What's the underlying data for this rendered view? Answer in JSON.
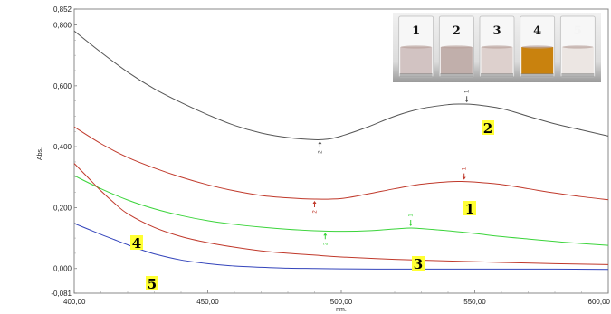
{
  "chart_data": {
    "type": "line",
    "title": "",
    "xlabel": "nm.",
    "ylabel": "Abs.",
    "xlim": [
      400,
      600
    ],
    "ylim": [
      -0.081,
      0.852
    ],
    "x_ticks": [
      "400,00",
      "450,00",
      "500,00",
      "550,00",
      "600,00"
    ],
    "x_tick_values": [
      400,
      450,
      500,
      550,
      600
    ],
    "y_ticks": [
      "0,852",
      "0,800",
      "0,600",
      "0,400",
      "0,200",
      "0,000",
      "-0,081"
    ],
    "y_tick_values": [
      0.852,
      0.8,
      0.6,
      0.4,
      0.2,
      0.0,
      -0.081
    ],
    "grid": false,
    "series": [
      {
        "name": "2",
        "color": "#555555",
        "points": [
          [
            400,
            0.78
          ],
          [
            410,
            0.71
          ],
          [
            420,
            0.645
          ],
          [
            430,
            0.59
          ],
          [
            440,
            0.545
          ],
          [
            450,
            0.505
          ],
          [
            460,
            0.47
          ],
          [
            470,
            0.445
          ],
          [
            480,
            0.43
          ],
          [
            490,
            0.423
          ],
          [
            495,
            0.425
          ],
          [
            500,
            0.435
          ],
          [
            510,
            0.465
          ],
          [
            520,
            0.5
          ],
          [
            530,
            0.525
          ],
          [
            540,
            0.538
          ],
          [
            545,
            0.54
          ],
          [
            550,
            0.538
          ],
          [
            560,
            0.525
          ],
          [
            570,
            0.5
          ],
          [
            580,
            0.475
          ],
          [
            590,
            0.455
          ],
          [
            600,
            0.435
          ]
        ]
      },
      {
        "name": "1",
        "color": "#c0392b",
        "points": [
          [
            400,
            0.465
          ],
          [
            410,
            0.41
          ],
          [
            420,
            0.365
          ],
          [
            430,
            0.33
          ],
          [
            440,
            0.3
          ],
          [
            450,
            0.275
          ],
          [
            460,
            0.255
          ],
          [
            470,
            0.24
          ],
          [
            480,
            0.232
          ],
          [
            490,
            0.228
          ],
          [
            500,
            0.23
          ],
          [
            510,
            0.245
          ],
          [
            520,
            0.262
          ],
          [
            530,
            0.277
          ],
          [
            540,
            0.285
          ],
          [
            545,
            0.286
          ],
          [
            550,
            0.284
          ],
          [
            560,
            0.276
          ],
          [
            570,
            0.262
          ],
          [
            580,
            0.248
          ],
          [
            590,
            0.236
          ],
          [
            600,
            0.226
          ]
        ]
      },
      {
        "name": "",
        "color": "#3bd43b",
        "points": [
          [
            400,
            0.305
          ],
          [
            410,
            0.262
          ],
          [
            420,
            0.225
          ],
          [
            430,
            0.196
          ],
          [
            440,
            0.174
          ],
          [
            450,
            0.157
          ],
          [
            460,
            0.145
          ],
          [
            470,
            0.136
          ],
          [
            480,
            0.129
          ],
          [
            490,
            0.124
          ],
          [
            500,
            0.122
          ],
          [
            510,
            0.124
          ],
          [
            520,
            0.13
          ],
          [
            526,
            0.133
          ],
          [
            530,
            0.131
          ],
          [
            540,
            0.124
          ],
          [
            550,
            0.115
          ],
          [
            560,
            0.105
          ],
          [
            570,
            0.097
          ],
          [
            580,
            0.089
          ],
          [
            590,
            0.082
          ],
          [
            600,
            0.076
          ]
        ]
      },
      {
        "name": "3",
        "color": "#c0392b",
        "points": [
          [
            400,
            0.345
          ],
          [
            405,
            0.3
          ],
          [
            410,
            0.255
          ],
          [
            415,
            0.215
          ],
          [
            420,
            0.18
          ],
          [
            430,
            0.135
          ],
          [
            440,
            0.105
          ],
          [
            450,
            0.085
          ],
          [
            460,
            0.07
          ],
          [
            470,
            0.058
          ],
          [
            480,
            0.05
          ],
          [
            490,
            0.044
          ],
          [
            500,
            0.038
          ],
          [
            520,
            0.03
          ],
          [
            540,
            0.025
          ],
          [
            560,
            0.02
          ],
          [
            580,
            0.016
          ],
          [
            600,
            0.013
          ]
        ]
      },
      {
        "name": "5",
        "color": "#3344bb",
        "points": [
          [
            400,
            0.148
          ],
          [
            405,
            0.13
          ],
          [
            410,
            0.112
          ],
          [
            415,
            0.095
          ],
          [
            420,
            0.078
          ],
          [
            425,
            0.062
          ],
          [
            430,
            0.048
          ],
          [
            440,
            0.028
          ],
          [
            450,
            0.016
          ],
          [
            460,
            0.008
          ],
          [
            470,
            0.004
          ],
          [
            480,
            0.001
          ],
          [
            490,
            0.0
          ],
          [
            500,
            -0.001
          ],
          [
            520,
            -0.002
          ],
          [
            540,
            -0.002
          ],
          [
            560,
            -0.002
          ],
          [
            580,
            -0.002
          ],
          [
            600,
            -0.003
          ]
        ]
      }
    ],
    "curve_labels": [
      "2",
      "1",
      "3",
      "4",
      "5"
    ],
    "peak_markers": [
      "1",
      "2"
    ],
    "inset": {
      "vials": [
        {
          "label": "1",
          "liquid": "#d2c3c2"
        },
        {
          "label": "2",
          "liquid": "#c1afab"
        },
        {
          "label": "3",
          "liquid": "#ddd0cd"
        },
        {
          "label": "4",
          "liquid": "#c9820e"
        },
        {
          "label": "5",
          "liquid": "#ece6e3"
        }
      ]
    }
  }
}
